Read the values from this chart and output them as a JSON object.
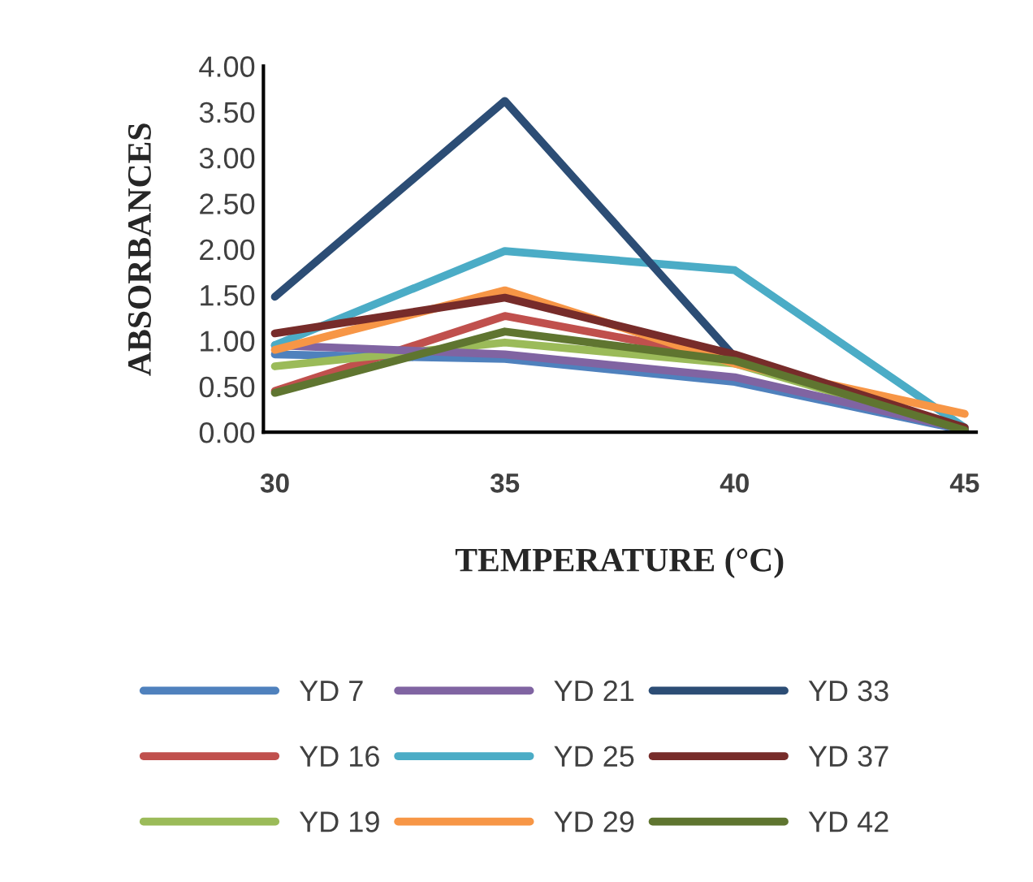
{
  "chart_data": {
    "type": "line",
    "xlabel": "TEMPERATURE (°C)",
    "ylabel": "ABSORBANCES",
    "categories": [
      "30",
      "35",
      "40",
      "45"
    ],
    "ylim": [
      0,
      4
    ],
    "yticks": [
      {
        "value": 0,
        "label": "0.00"
      },
      {
        "value": 0.5,
        "label": "0.50"
      },
      {
        "value": 1,
        "label": "1.00"
      },
      {
        "value": 1.5,
        "label": "1.50"
      },
      {
        "value": 2,
        "label": "2.00"
      },
      {
        "value": 2.5,
        "label": "2.50"
      },
      {
        "value": 3,
        "label": "3.00"
      },
      {
        "value": 3.5,
        "label": "3.50"
      },
      {
        "value": 4,
        "label": "4.00"
      }
    ],
    "grid": false,
    "legend": "bottom",
    "marker": "none",
    "line_style": "solid",
    "series": [
      {
        "name": "YD 7",
        "color": "#4f81bd",
        "values": [
          0.85,
          0.8,
          0.55,
          0.02
        ]
      },
      {
        "name": "YD 16",
        "color": "#c0504d",
        "values": [
          0.45,
          1.27,
          0.8,
          0.02
        ]
      },
      {
        "name": "YD 19",
        "color": "#9bbb59",
        "values": [
          0.72,
          0.98,
          0.75,
          0.02
        ]
      },
      {
        "name": "YD 21",
        "color": "#8064a2",
        "values": [
          0.95,
          0.85,
          0.6,
          0.03
        ]
      },
      {
        "name": "YD 25",
        "color": "#4bacc6",
        "values": [
          0.95,
          1.98,
          1.77,
          0.05
        ]
      },
      {
        "name": "YD 29",
        "color": "#f79646",
        "values": [
          0.9,
          1.55,
          0.75,
          0.2
        ]
      },
      {
        "name": "YD 33",
        "color": "#2c4d75",
        "values": [
          1.48,
          3.62,
          0.82,
          0.02
        ]
      },
      {
        "name": "YD 37",
        "color": "#772c2a",
        "values": [
          1.08,
          1.47,
          0.85,
          0.05
        ]
      },
      {
        "name": "YD 42",
        "color": "#5f7530",
        "values": [
          0.43,
          1.1,
          0.78,
          0.02
        ]
      }
    ]
  }
}
